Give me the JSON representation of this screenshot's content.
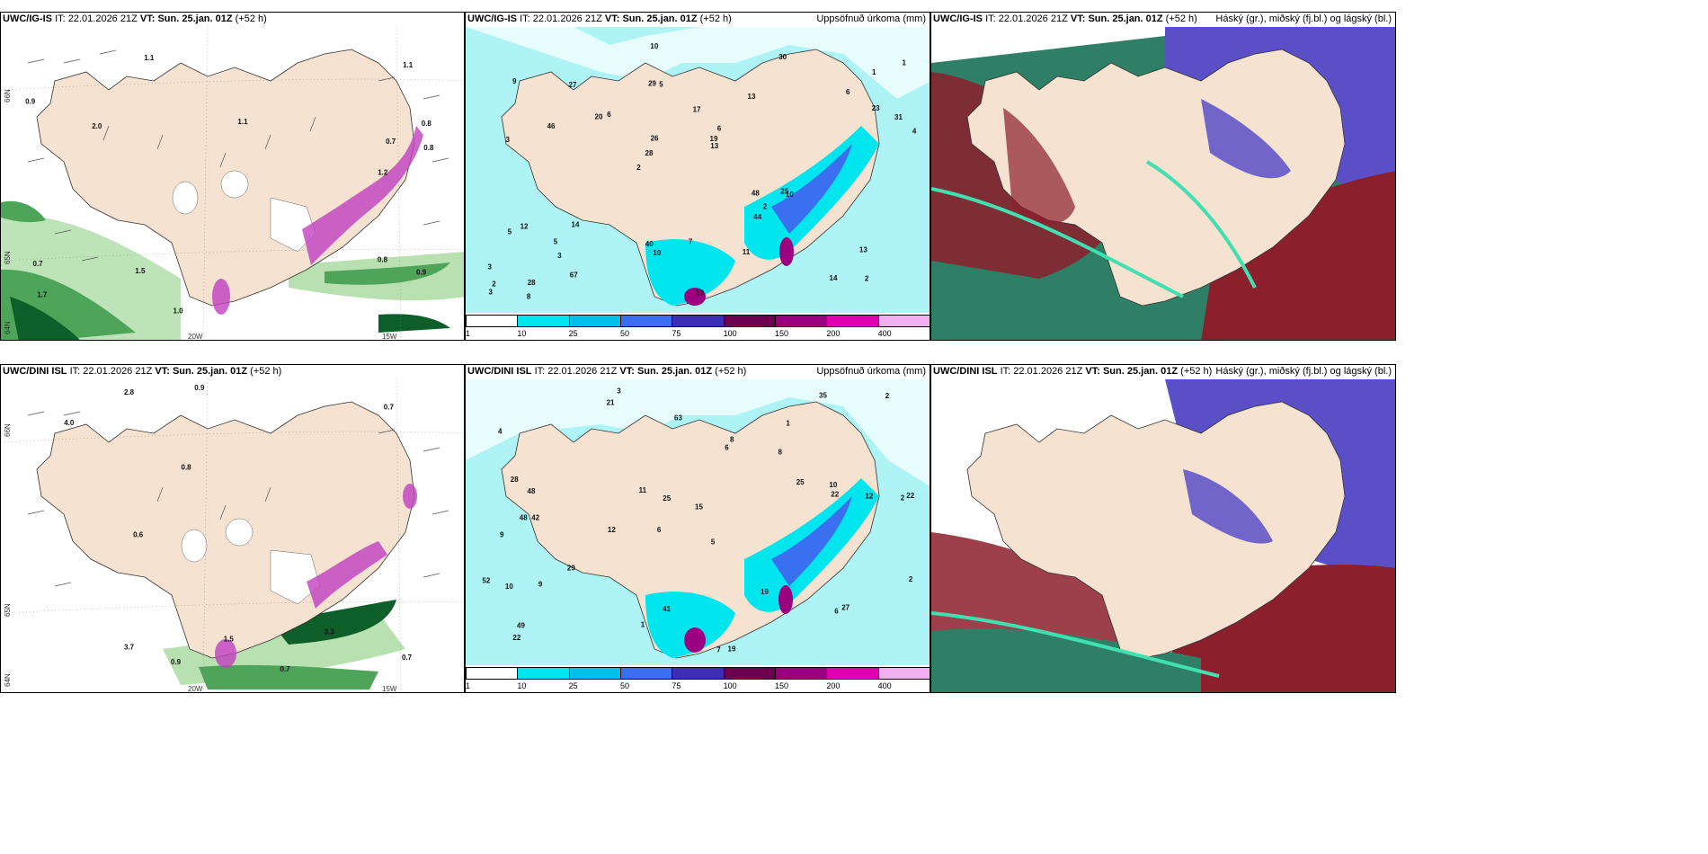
{
  "panels": [
    {
      "model": "UWC/IG-IS",
      "init_label": "IT:",
      "init": "22.01.2026 21Z",
      "valid_label": "VT:",
      "valid": "Sun. 25.jan. 01Z",
      "lead": "(+52 h)",
      "product": "",
      "lat_labels": [
        "66N",
        "65N",
        "64N"
      ],
      "lon_labels": [
        "20W",
        "15W"
      ]
    },
    {
      "model": "UWC/IG-IS",
      "init_label": "IT:",
      "init": "22.01.2026 21Z",
      "valid_label": "VT:",
      "valid": "Sun. 25.jan. 01Z",
      "lead": "(+52 h)",
      "product": "Uppsöfnuð úrkoma (mm)"
    },
    {
      "model": "UWC/IG-IS",
      "init_label": "IT:",
      "init": "22.01.2026 21Z",
      "valid_label": "VT:",
      "valid": "Sun. 25.jan. 01Z",
      "lead": "(+52 h)",
      "product": "Háský (gr.), miðský (fj.bl.) og lágský (bl.)"
    },
    {
      "model": "UWC/DINI ISL",
      "init_label": "IT:",
      "init": "22.01.2026 21Z",
      "valid_label": "VT:",
      "valid": "Sun. 25.jan. 01Z",
      "lead": "(+52 h)",
      "product": "",
      "lat_labels": [
        "66N",
        "65N",
        "64N"
      ],
      "lon_labels": [
        "20W",
        "15W"
      ]
    },
    {
      "model": "UWC/DINI ISL",
      "init_label": "IT:",
      "init": "22.01.2026 21Z",
      "valid_label": "VT:",
      "valid": "Sun. 25.jan. 01Z",
      "lead": "(+52 h)",
      "product": "Uppsöfnuð úrkoma (mm)"
    },
    {
      "model": "UWC/DINI ISL",
      "init_label": "IT:",
      "init": "22.01.2026 21Z",
      "valid_label": "VT:",
      "valid": "Sun. 25.jan. 01Z",
      "lead": "(+52 h)",
      "product": "Háský (gr.), miðský (fj.bl.) og lágský (bl.)"
    }
  ],
  "precip_colorbar": {
    "ticks": [
      "1",
      "10",
      "25",
      "50",
      "75",
      "100",
      "150",
      "200",
      "400"
    ],
    "colors": [
      "#ffffff",
      "#00e5ee",
      "#00bfe8",
      "#3a6ff0",
      "#3c2fb5",
      "#6e0050",
      "#9a0080",
      "#e000b0",
      "#f2b0f0"
    ]
  },
  "precip_values_top": [
    "2",
    "3",
    "1",
    "2",
    "13",
    "28",
    "29",
    "17",
    "12",
    "6",
    "3",
    "3",
    "5",
    "6",
    "10",
    "9",
    "10",
    "4",
    "48",
    "23",
    "28",
    "40",
    "26",
    "27",
    "30",
    "14",
    "14",
    "13",
    "25",
    "10",
    "20",
    "46",
    "44",
    "67",
    "31",
    "19",
    "2",
    "10",
    "13",
    "5",
    "6",
    "1",
    "2",
    "11",
    "5",
    "8",
    "3",
    "7"
  ],
  "precip_values_bottom": [
    "3",
    "1",
    "2",
    "6",
    "5",
    "42",
    "4",
    "8",
    "9",
    "6",
    "15",
    "22",
    "21",
    "12",
    "7",
    "19",
    "41",
    "35",
    "25",
    "29",
    "48",
    "48",
    "22",
    "12",
    "52",
    "28",
    "25",
    "22",
    "27",
    "10",
    "6",
    "8",
    "9",
    "11",
    "19",
    "2",
    "10",
    "1",
    "2",
    "63",
    "49"
  ],
  "wind_values_top": [
    "0.8",
    "0.8",
    "0.9",
    "1.1",
    "1.7",
    "1.1",
    "0.7",
    "1.5",
    "1.1",
    "2.0",
    "0.8",
    "0.9",
    "1.2",
    "1.0",
    "0.7"
  ],
  "wind_values_bottom": [
    "0.9",
    "0.7",
    "3.7",
    "3.3",
    "2.8",
    "4.0",
    "0.6",
    "0.7",
    "0.9",
    "0.8",
    "0.7",
    "1.5"
  ],
  "colors": {
    "land": "#f5e2d0",
    "sea_light": "#ffffff",
    "green_dark": "#0e5e2a",
    "green_mid": "#4ea55a",
    "green_light": "#b8e0b0",
    "magenta": "#c040c0",
    "cyan_light": "#aef3f5",
    "cloud_high": "#2e7f66",
    "cloud_mid": "#5b4fc8",
    "cloud_low": "#8c1f2c"
  }
}
